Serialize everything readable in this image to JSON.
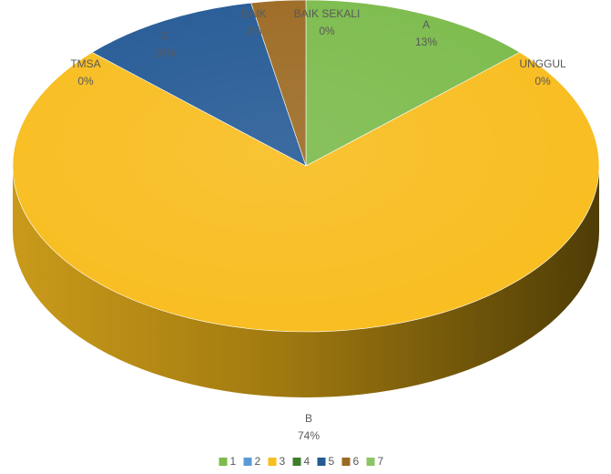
{
  "chart_data": {
    "type": "pie",
    "style": "3d",
    "slices": [
      {
        "label": "A",
        "value": 13,
        "value_label": "13%",
        "color": "#7cbb4c"
      },
      {
        "label": "UNGGUL",
        "value": 0,
        "value_label": "0%",
        "color": "#b6d57c"
      },
      {
        "label": "B",
        "value": 74,
        "value_label": "74%",
        "color": "#f8bd1f"
      },
      {
        "label": "TMSA",
        "value": 0,
        "value_label": "0%",
        "color": "#3f7ec0"
      },
      {
        "label": "C",
        "value": 10,
        "value_label": "10%",
        "color": "#255a95"
      },
      {
        "label": "BAIK",
        "value": 3,
        "value_label": "3%",
        "color": "#9c6a23"
      },
      {
        "label": "BAIK SEKALI",
        "value": 0,
        "value_label": "0%",
        "color": "#4c8a2c"
      }
    ],
    "legend": {
      "position": "bottom",
      "items": [
        {
          "label": "1",
          "color": "#7cbb4c"
        },
        {
          "label": "2",
          "color": "#5b9bd5"
        },
        {
          "label": "3",
          "color": "#f8bd1f"
        },
        {
          "label": "4",
          "color": "#3e7d2a"
        },
        {
          "label": "5",
          "color": "#255a95"
        },
        {
          "label": "6",
          "color": "#9c6a23"
        },
        {
          "label": "7",
          "color": "#8cc466"
        }
      ]
    }
  }
}
